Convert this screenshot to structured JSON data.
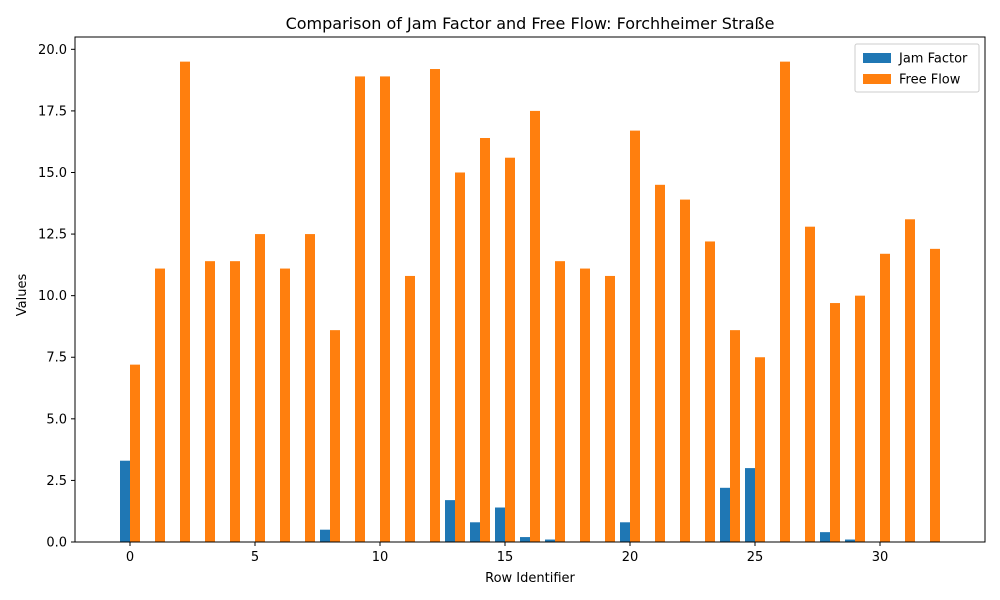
{
  "chart_data": {
    "type": "bar",
    "title": "Comparison of Jam Factor and Free Flow: Forchheimer Straße",
    "xlabel": "Row Identifier",
    "ylabel": "Values",
    "xlim": [
      -2.2,
      34.2
    ],
    "ylim": [
      0,
      20.5
    ],
    "x_ticks": [
      0,
      5,
      10,
      15,
      20,
      25,
      30
    ],
    "y_ticks": [
      0.0,
      2.5,
      5.0,
      7.5,
      10.0,
      12.5,
      15.0,
      17.5,
      20.0
    ],
    "y_tick_labels": [
      "0.0",
      "2.5",
      "5.0",
      "7.5",
      "10.0",
      "12.5",
      "15.0",
      "17.5",
      "20.0"
    ],
    "legend_position": "upper right",
    "grid": false,
    "x": [
      0,
      1,
      2,
      3,
      4,
      5,
      6,
      7,
      8,
      9,
      10,
      11,
      12,
      13,
      14,
      15,
      16,
      17,
      18,
      19,
      20,
      21,
      22,
      23,
      24,
      25,
      26,
      27,
      28,
      29,
      30,
      31,
      32
    ],
    "series": [
      {
        "name": "Jam Factor",
        "color": "#1f77b4",
        "values": [
          3.3,
          0,
          0,
          0,
          0,
          0,
          0,
          0,
          0.5,
          0,
          0,
          0,
          0,
          1.7,
          0.8,
          1.4,
          0.2,
          0.1,
          0,
          0,
          0.8,
          0,
          0,
          0,
          2.2,
          3.0,
          0,
          0,
          0.4,
          0.1,
          0,
          0,
          0
        ]
      },
      {
        "name": "Free Flow",
        "color": "#ff7f0e",
        "values": [
          7.2,
          11.1,
          19.5,
          11.4,
          11.4,
          12.5,
          11.1,
          12.5,
          8.6,
          18.9,
          18.9,
          10.8,
          19.2,
          15.0,
          16.4,
          15.6,
          17.5,
          11.4,
          11.1,
          10.8,
          16.7,
          14.5,
          13.9,
          12.2,
          8.6,
          7.5,
          19.5,
          12.8,
          9.7,
          10.0,
          11.7,
          13.1,
          11.9
        ]
      }
    ]
  }
}
